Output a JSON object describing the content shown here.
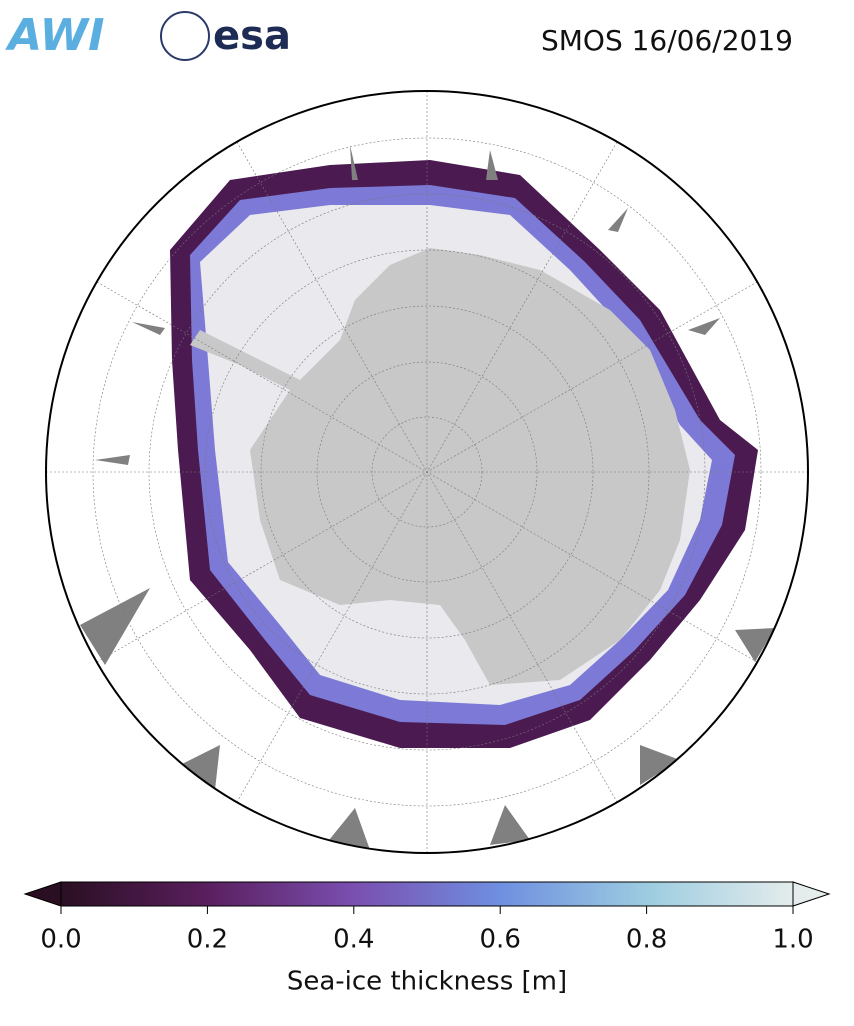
{
  "header": {
    "logos": [
      "AWI",
      "esa"
    ],
    "title": "SMOS 16/06/2019"
  },
  "colorbar": {
    "label": "Sea-ice thickness [m]",
    "lim": [
      0,
      1
    ],
    "ticks": [
      {
        "value": 0,
        "label": "0.0"
      },
      {
        "value": 0.2,
        "label": "0.2"
      },
      {
        "value": 0.4,
        "label": "0.4"
      },
      {
        "value": 0.6,
        "label": "0.6"
      },
      {
        "value": 0.8,
        "label": "0.8"
      },
      {
        "value": 1,
        "label": "1.0"
      }
    ],
    "colors": [
      "#2a0f22",
      "#5a1f5e",
      "#7a4fb0",
      "#6f8fe0",
      "#9ccce0",
      "#e4ecec"
    ]
  }
}
